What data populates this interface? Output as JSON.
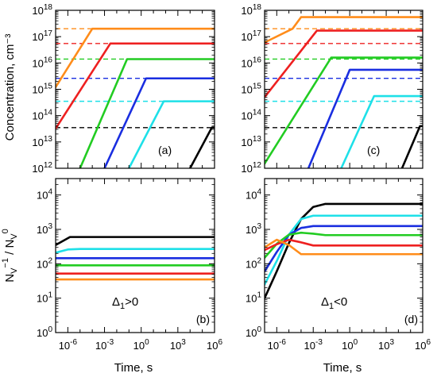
{
  "chart_data": [
    {
      "panel": "a",
      "type": "line",
      "panel_label": "(a)",
      "ylabel": "Concentration, cm⁻³",
      "xscale": "log",
      "yscale": "log",
      "xlim": [
        1e-07,
        1000000.0
      ],
      "ylim": [
        1000000000000.0,
        1e+18
      ],
      "x_ticks": [
        "10⁻⁶",
        "10⁻³",
        "10⁰",
        "10³",
        "10⁶"
      ],
      "y_ticks": [
        "10¹²",
        "10¹³",
        "10¹⁴",
        "10¹⁵",
        "10¹⁶",
        "10¹⁷",
        "10¹⁸"
      ],
      "series": [
        {
          "color": "#ff8c1a",
          "x": [
            1e-07,
            0.0001,
            1000000.0
          ],
          "y": [
            1200000000000000.0,
            2e+17,
            2e+17
          ]
        },
        {
          "color": "#ee2020",
          "x": [
            1e-07,
            0.003,
            1000000.0
          ],
          "y": [
            32000000000000.0,
            5.5e+16,
            5.5e+16
          ]
        },
        {
          "color": "#22cc22",
          "x": [
            1e-05,
            0.07,
            1000000.0
          ],
          "y": [
            1000000000000.0,
            1.4e+16,
            1.4e+16
          ]
        },
        {
          "color": "#1a2ee0",
          "x": [
            0.001,
            2.5,
            1000000.0
          ],
          "y": [
            1000000000000.0,
            2600000000000000.0,
            2600000000000000.0
          ]
        },
        {
          "color": "#1ee0e8",
          "x": [
            0.1,
            70,
            1000000.0
          ],
          "y": [
            1000000000000.0,
            350000000000000.0,
            350000000000000.0
          ]
        },
        {
          "color": "#000000",
          "x": [
            10000.0,
            600000.0,
            1000000.0
          ],
          "y": [
            1000000000000.0,
            35000000000000.0,
            35000000000000.0
          ]
        }
      ],
      "reference_lines": [
        {
          "color": "#ff8c1a",
          "y": 2e+17
        },
        {
          "color": "#ee2020",
          "y": 5.5e+16
        },
        {
          "color": "#22cc22",
          "y": 1.4e+16
        },
        {
          "color": "#1a2ee0",
          "y": 2600000000000000.0
        },
        {
          "color": "#1ee0e8",
          "y": 350000000000000.0
        },
        {
          "color": "#000000",
          "y": 35000000000000.0
        }
      ]
    },
    {
      "panel": "c",
      "type": "line",
      "panel_label": "(c)",
      "xscale": "log",
      "yscale": "log",
      "xlim": [
        1e-07,
        1000000.0
      ],
      "ylim": [
        1000000000000.0,
        1e+18
      ],
      "x_ticks": [
        "10⁻⁶",
        "10⁻³",
        "10⁰",
        "10³",
        "10⁶"
      ],
      "y_ticks": [
        "10¹²",
        "10¹³",
        "10¹⁴",
        "10¹⁵",
        "10¹⁶",
        "10¹⁷",
        "10¹⁸"
      ],
      "series": [
        {
          "color": "#ff8c1a",
          "x": [
            1e-07,
            2e-05,
            0.0001,
            1000000.0
          ],
          "y": [
            6e+16,
            2e+17,
            5.5e+17,
            5.5e+17
          ]
        },
        {
          "color": "#ee2020",
          "x": [
            1e-07,
            0.002,
            1000000.0
          ],
          "y": [
            500000000000000.0,
            1.7e+17,
            1.7e+17
          ]
        },
        {
          "color": "#22cc22",
          "x": [
            1e-07,
            0.03,
            1000000.0
          ],
          "y": [
            1500000000000.0,
            1.6e+16,
            1.6e+16
          ]
        },
        {
          "color": "#1a2ee0",
          "x": [
            0.0004,
            1,
            1000000.0
          ],
          "y": [
            1000000000000.0,
            5500000000000000.0,
            5500000000000000.0
          ]
        },
        {
          "color": "#1ee0e8",
          "x": [
            0.2,
            100,
            1000000.0
          ],
          "y": [
            1000000000000.0,
            550000000000000.0,
            550000000000000.0
          ]
        },
        {
          "color": "#000000",
          "x": [
            20000.0,
            600000.0,
            1000000.0
          ],
          "y": [
            1000000000000.0,
            40000000000000.0,
            40000000000000.0
          ]
        }
      ],
      "reference_lines": [
        {
          "color": "#ff8c1a",
          "y": 2e+17
        },
        {
          "color": "#ee2020",
          "y": 5.5e+16
        },
        {
          "color": "#22cc22",
          "y": 1.4e+16
        },
        {
          "color": "#1a2ee0",
          "y": 2600000000000000.0
        },
        {
          "color": "#1ee0e8",
          "y": 350000000000000.0
        },
        {
          "color": "#000000",
          "y": 35000000000000.0
        }
      ]
    },
    {
      "panel": "b",
      "type": "line",
      "panel_label": "(b)",
      "annotation": "Δ₁>0",
      "ylabel": "N_V⁻¹ / N_V⁰",
      "xlabel": "Time, s",
      "xscale": "log",
      "yscale": "log",
      "xlim": [
        1e-07,
        1000000.0
      ],
      "ylim": [
        1,
        30000.0
      ],
      "x_ticks": [
        "10⁻⁶",
        "10⁻³",
        "10⁰",
        "10³",
        "10⁶"
      ],
      "y_ticks": [
        "10⁰",
        "10¹",
        "10²",
        "10³",
        "10⁴"
      ],
      "series": [
        {
          "color": "#000000",
          "x": [
            1e-07,
            1.5e-06,
            1000000.0
          ],
          "y": [
            350,
            600,
            600
          ]
        },
        {
          "color": "#1ee0e8",
          "x": [
            1e-07,
            1e-06,
            1e-05,
            1000000.0
          ],
          "y": [
            210,
            260,
            270,
            270
          ]
        },
        {
          "color": "#1a2ee0",
          "x": [
            1e-07,
            1000000.0
          ],
          "y": [
            145,
            145
          ]
        },
        {
          "color": "#22cc22",
          "x": [
            1e-07,
            1000000.0
          ],
          "y": [
            90,
            90
          ]
        },
        {
          "color": "#ee2020",
          "x": [
            1e-07,
            1000000.0
          ],
          "y": [
            52,
            52
          ]
        },
        {
          "color": "#ff8c1a",
          "x": [
            1e-07,
            1000000.0
          ],
          "y": [
            35,
            35
          ]
        }
      ]
    },
    {
      "panel": "d",
      "type": "line",
      "panel_label": "(d)",
      "annotation": "Δ₁<0",
      "xlabel": "Time, s",
      "xscale": "log",
      "yscale": "log",
      "xlim": [
        1e-07,
        1000000.0
      ],
      "ylim": [
        1,
        30000.0
      ],
      "x_ticks": [
        "10⁻⁶",
        "10⁻³",
        "10⁰",
        "10³",
        "10⁶"
      ],
      "y_ticks": [
        "10⁰",
        "10¹",
        "10²",
        "10³",
        "10⁴"
      ],
      "series": [
        {
          "color": "#000000",
          "x": [
            1e-07,
            1e-06,
            1e-05,
            0.0001,
            0.001,
            0.01,
            1000000.0
          ],
          "y": [
            10,
            60,
            400,
            2000,
            4500,
            5500,
            5500
          ]
        },
        {
          "color": "#1ee0e8",
          "x": [
            1e-07,
            1e-06,
            1e-05,
            0.0001,
            0.001,
            1000000.0
          ],
          "y": [
            25,
            120,
            700,
            2000,
            2500,
            2500
          ]
        },
        {
          "color": "#1a2ee0",
          "x": [
            1e-07,
            1e-06,
            1e-05,
            0.0001,
            0.001,
            1000000.0
          ],
          "y": [
            60,
            220,
            700,
            1100,
            1250,
            1250
          ]
        },
        {
          "color": "#22cc22",
          "x": [
            1e-07,
            1e-06,
            1e-05,
            0.0001,
            0.001,
            0.01,
            1000000.0
          ],
          "y": [
            150,
            380,
            700,
            800,
            750,
            680,
            680
          ]
        },
        {
          "color": "#ee2020",
          "x": [
            1e-07,
            1e-06,
            1e-05,
            0.0001,
            0.001,
            1000000.0
          ],
          "y": [
            250,
            370,
            500,
            420,
            340,
            340
          ]
        },
        {
          "color": "#ff8c1a",
          "x": [
            1e-07,
            1e-06,
            1e-05,
            0.0001,
            1000000.0
          ],
          "y": [
            300,
            500,
            350,
            190,
            190
          ]
        }
      ]
    }
  ]
}
